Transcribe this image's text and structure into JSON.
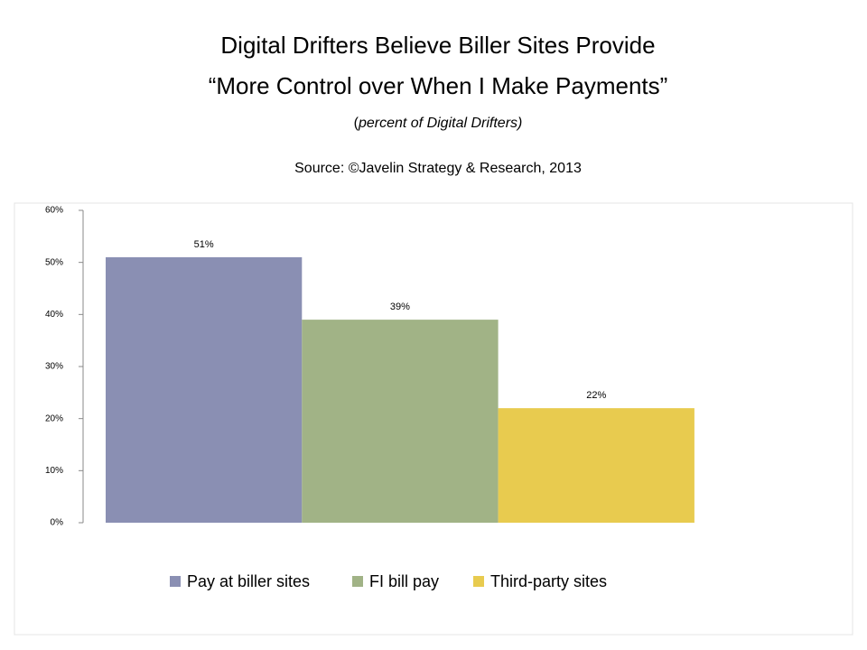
{
  "chart_data": {
    "type": "bar",
    "title": [
      "Digital Drifters Believe Biller Sites Provide",
      "“More Control over When I Make Payments”"
    ],
    "subtitle": "(percent of Digital Drifters)",
    "source": "Source: ©Javelin Strategy & Research, 2013",
    "categories": [
      null
    ],
    "series": [
      {
        "name": "Pay at biller sites",
        "color": "#8a8fb3",
        "values": [
          51
        ],
        "value_labels": [
          "51%"
        ]
      },
      {
        "name": "FI bill pay",
        "color": "#a1b386",
        "values": [
          39
        ],
        "value_labels": [
          "39%"
        ]
      },
      {
        "name": "Third-party sites",
        "color": "#e8cb4f",
        "values": [
          22
        ],
        "value_labels": [
          "22%"
        ]
      }
    ],
    "ylim": [
      0,
      60
    ],
    "yticks": [
      {
        "value": 0,
        "label": "0%"
      },
      {
        "value": 10,
        "label": "10%"
      },
      {
        "value": 20,
        "label": "20%"
      },
      {
        "value": 30,
        "label": "30%"
      },
      {
        "value": 40,
        "label": "40%"
      },
      {
        "value": 50,
        "label": "50%"
      },
      {
        "value": 60,
        "label": "60%"
      }
    ],
    "grid": false,
    "legend": "bottom"
  }
}
